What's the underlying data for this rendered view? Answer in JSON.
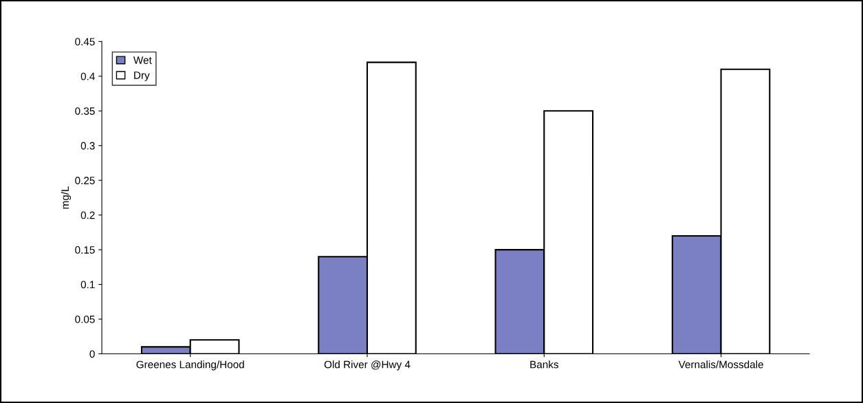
{
  "chart_data": {
    "type": "bar",
    "ylabel": "mg/L",
    "categories": [
      "Greenes Landing/Hood",
      "Old River @Hwy 4",
      "Banks",
      "Vernalis/Mossdale"
    ],
    "series": [
      {
        "name": "Wet",
        "color": "#7b7fc4",
        "values": [
          0.01,
          0.14,
          0.15,
          0.17
        ]
      },
      {
        "name": "Dry",
        "color": "#ffffff",
        "values": [
          0.02,
          0.42,
          0.35,
          0.41
        ]
      }
    ],
    "ylim": [
      0,
      0.45
    ],
    "yticks": [
      {
        "value": 0,
        "label": "0"
      },
      0.05,
      0.1,
      0.15,
      0.2,
      0.25,
      0.3,
      0.35,
      0.4,
      0.45
    ],
    "grid": false,
    "legend": "top left"
  }
}
